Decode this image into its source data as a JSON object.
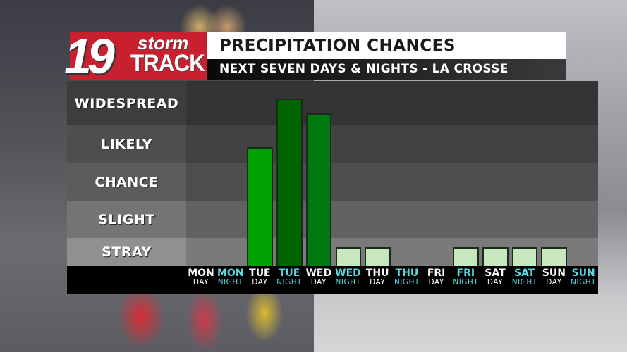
{
  "logo": {
    "number": "19",
    "word1": "storm",
    "word2": "TRACK"
  },
  "header": {
    "title": "PRECIPITATION CHANCES",
    "subtitle": "NEXT SEVEN DAYS & NIGHTS - LA CROSSE"
  },
  "colors": {
    "logo_red": "#c8202e",
    "day_label": "#ffffff",
    "night_label": "#5cd6dc",
    "stray_bar": "#c7e8bf",
    "chance_bar": "#00a000",
    "widespread_bar": "#006400",
    "likely_bar": "#007a10"
  },
  "chart_data": {
    "type": "bar",
    "title": "PRECIPITATION CHANCES",
    "subtitle": "NEXT SEVEN DAYS & NIGHTS - LA CROSSE",
    "xlabel": "",
    "ylabel": "",
    "y_categories": [
      "STRAY",
      "SLIGHT",
      "CHANCE",
      "LIKELY",
      "WIDESPREAD"
    ],
    "y_scale": {
      "NONE": 0,
      "STRAY": 1,
      "SLIGHT": 2,
      "CHANCE": 3,
      "LIKELY": 4,
      "WIDESPREAD": 5
    },
    "ylim": [
      0,
      5
    ],
    "categories": [
      "MON DAY",
      "MON NIGHT",
      "TUE DAY",
      "TUE NIGHT",
      "WED DAY",
      "WED NIGHT",
      "THU DAY",
      "THU NIGHT",
      "FRI DAY",
      "FRI NIGHT",
      "SAT DAY",
      "SAT NIGHT",
      "SUN DAY",
      "SUN NIGHT"
    ],
    "values": [
      0,
      0,
      3.7,
      5.2,
      4.7,
      1,
      1,
      0,
      0,
      1,
      1,
      1,
      1,
      0
    ],
    "value_levels": [
      "NONE",
      "NONE",
      "CHANCE-LIKELY",
      "WIDESPREAD",
      "LIKELY-WIDESPREAD",
      "STRAY",
      "STRAY",
      "NONE",
      "NONE",
      "STRAY",
      "STRAY",
      "STRAY",
      "STRAY",
      "NONE"
    ],
    "grid": true,
    "legend": "none"
  },
  "bands": [
    {
      "label": "WIDESPREAD",
      "color": "#343434"
    },
    {
      "label": "LIKELY",
      "color": "#424242"
    },
    {
      "label": "CHANCE",
      "color": "#4e4e4e"
    },
    {
      "label": "SLIGHT",
      "color": "#626262"
    },
    {
      "label": "STRAY",
      "color": "#7a7a7a"
    }
  ],
  "axis": {
    "ticks": [
      {
        "day": "MON",
        "period": "DAY"
      },
      {
        "day": "MON",
        "period": "NIGHT"
      },
      {
        "day": "TUE",
        "period": "DAY"
      },
      {
        "day": "TUE",
        "period": "NIGHT"
      },
      {
        "day": "WED",
        "period": "DAY"
      },
      {
        "day": "WED",
        "period": "NIGHT"
      },
      {
        "day": "THU",
        "period": "DAY"
      },
      {
        "day": "THU",
        "period": "NIGHT"
      },
      {
        "day": "FRI",
        "period": "DAY"
      },
      {
        "day": "FRI",
        "period": "NIGHT"
      },
      {
        "day": "SAT",
        "period": "DAY"
      },
      {
        "day": "SAT",
        "period": "NIGHT"
      },
      {
        "day": "SUN",
        "period": "DAY"
      },
      {
        "day": "SUN",
        "period": "NIGHT"
      }
    ]
  }
}
